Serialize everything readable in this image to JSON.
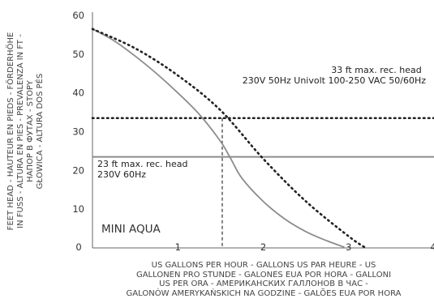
{
  "chart_data": {
    "type": "line",
    "title": "MINI AQUA",
    "xlim": [
      0,
      4
    ],
    "ylim": [
      0,
      60
    ],
    "xticks": [
      0,
      1,
      2,
      3,
      4
    ],
    "yticks": [
      0,
      10,
      20,
      30,
      40,
      50,
      60
    ],
    "ylabel_lines": [
      "FEET HEAD - HAUTEUR EN PIEDS - FÖRDERHÖHE",
      "IN FUSS - ALTURA EN PIES - PREVALENZA IN FT -",
      "НАПОР В ФУТАХ - STOPY",
      "GŁOWICA - ALTURA DOS PÉS"
    ],
    "xlabel_lines": [
      "US GALLONS PER HOUR - GALLONS US PAR HEURE - US",
      "GALLONEN PRO STUNDE - GALONES EUA POR HORA - GALLONI",
      "US PER ORA - АМЕРИКАНСКИХ ГАЛЛОНОВ В ЧАС -",
      "GALONÓW AMERYKAŃSKICH NA GODZINE - GALÕES EUA POR HORA"
    ],
    "series": [
      {
        "style": "solid",
        "color": "#8c8c8c",
        "x": [
          0,
          0.25,
          0.5,
          0.75,
          1.0,
          1.25,
          1.5,
          1.62,
          1.75,
          2.0,
          2.25,
          2.5,
          2.75,
          2.95
        ],
        "y": [
          56.5,
          53.5,
          49.5,
          45,
          40,
          34.5,
          27.5,
          23,
          18,
          12,
          7.5,
          4.2,
          1.8,
          0.2
        ]
      },
      {
        "style": "dotted",
        "color": "#222222",
        "x": [
          0,
          0.5,
          1.0,
          1.5,
          2.0,
          2.5,
          3.0,
          3.2
        ],
        "y": [
          56.5,
          51.5,
          44.5,
          35.5,
          23,
          12,
          3,
          0
        ]
      }
    ],
    "reference_lines": [
      {
        "y": 33.5,
        "style": "dotted",
        "color": "#222222",
        "label_lines": [
          "33 ft max. rec. head",
          "230V 50Hz Univolt 100-250 VAC 50/60Hz"
        ]
      },
      {
        "y": 23.5,
        "style": "solid",
        "color": "#8c8c8c",
        "label_lines": [
          "23 ft max. rec. head",
          "230V 60Hz"
        ]
      }
    ],
    "marker_line": {
      "x": 1.52,
      "y_top": 33.5,
      "style": "dashed"
    },
    "grid": false
  }
}
